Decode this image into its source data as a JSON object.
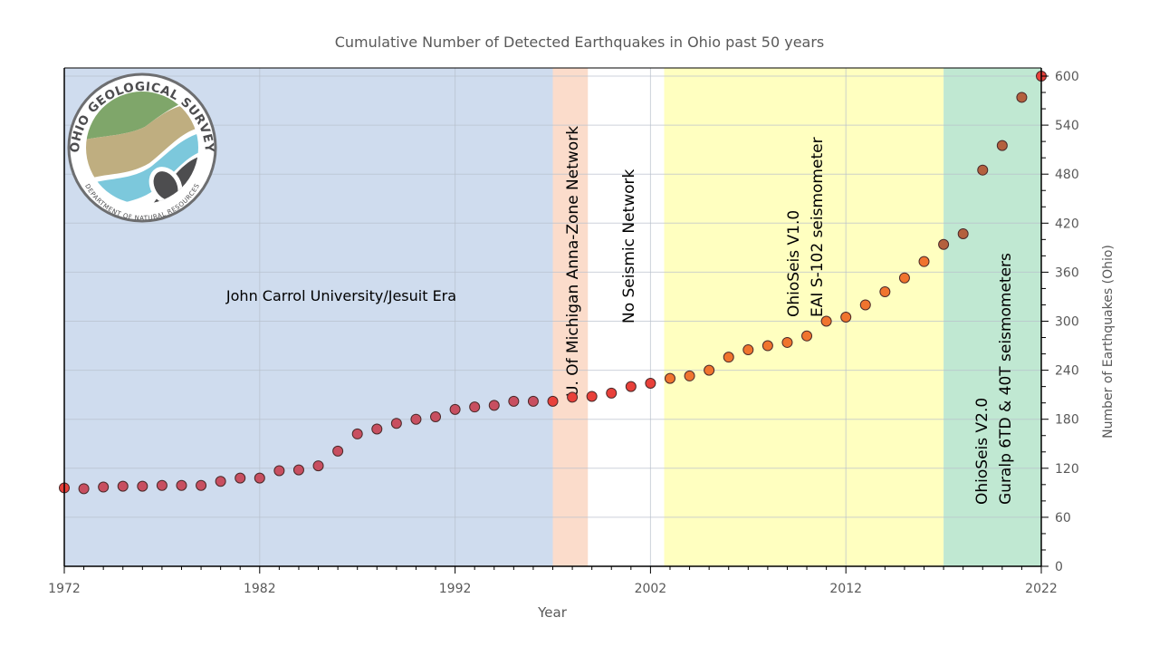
{
  "chart_data": {
    "type": "scatter",
    "title": "Cumulative Number of Detected Earthquakes in Ohio past 50 years",
    "xlabel": "Year",
    "ylabel": "Number of Earthquakes (Ohio)",
    "xlim": [
      1972,
      2022
    ],
    "ylim": [
      0,
      600
    ],
    "xticks": [
      1972,
      1982,
      1992,
      2002,
      2012,
      2022
    ],
    "yticks": [
      0,
      60,
      120,
      180,
      240,
      300,
      360,
      420,
      480,
      540,
      600
    ],
    "grid": true,
    "y_axis_side": "right",
    "x": [
      1972,
      1973,
      1974,
      1975,
      1976,
      1977,
      1978,
      1979,
      1980,
      1981,
      1982,
      1983,
      1984,
      1985,
      1986,
      1987,
      1988,
      1989,
      1990,
      1991,
      1992,
      1993,
      1994,
      1995,
      1996,
      1997,
      1998,
      1999,
      2000,
      2001,
      2002,
      2003,
      2004,
      2005,
      2006,
      2007,
      2008,
      2009,
      2010,
      2011,
      2012,
      2013,
      2014,
      2015,
      2016,
      2017,
      2018,
      2019,
      2020,
      2021,
      2022
    ],
    "y": [
      96,
      95,
      97,
      98,
      98,
      99,
      99,
      99,
      104,
      108,
      108,
      117,
      118,
      123,
      141,
      162,
      168,
      175,
      180,
      183,
      192,
      195,
      197,
      202,
      202,
      202,
      207,
      208,
      212,
      220,
      224,
      230,
      233,
      240,
      256,
      265,
      270,
      274,
      282,
      300,
      305,
      320,
      336,
      353,
      373,
      394,
      407,
      485,
      515,
      574,
      600
    ],
    "eras": [
      {
        "label": "John Carrol University/Jesuit  Era",
        "start": 1972,
        "end": 1997,
        "color": "#cfdcee",
        "point_color": "#c84f60"
      },
      {
        "label": "U. Of Michigan Anna-Zone  Network",
        "start": 1997,
        "end": 1998.8,
        "color": "#fbdccb",
        "point_color": "#e8403a"
      },
      {
        "label": "No Seismic Network",
        "start": 1998.8,
        "end": 2002.7,
        "color": "#ffffff",
        "point_color": "#e8403a"
      },
      {
        "label": "OhioSeis V1.0",
        "label2": "EAI S-102 seismometer",
        "start": 2002.7,
        "end": 2017,
        "color": "#ffffc0",
        "point_color": "#f0742e"
      },
      {
        "label": "OhioSeis V2.0",
        "label2": "Guralp 6TD & 40T seismometers",
        "start": 2017,
        "end": 2022,
        "color": "#c0e8d2",
        "point_color": "#b4603e"
      }
    ],
    "endpoint_color": "#e8403a"
  },
  "logo": {
    "top_text": "OHIO GEOLOGICAL SURVEY",
    "bottom_text": "DEPARTMENT OF NATURAL RESOURCES"
  }
}
